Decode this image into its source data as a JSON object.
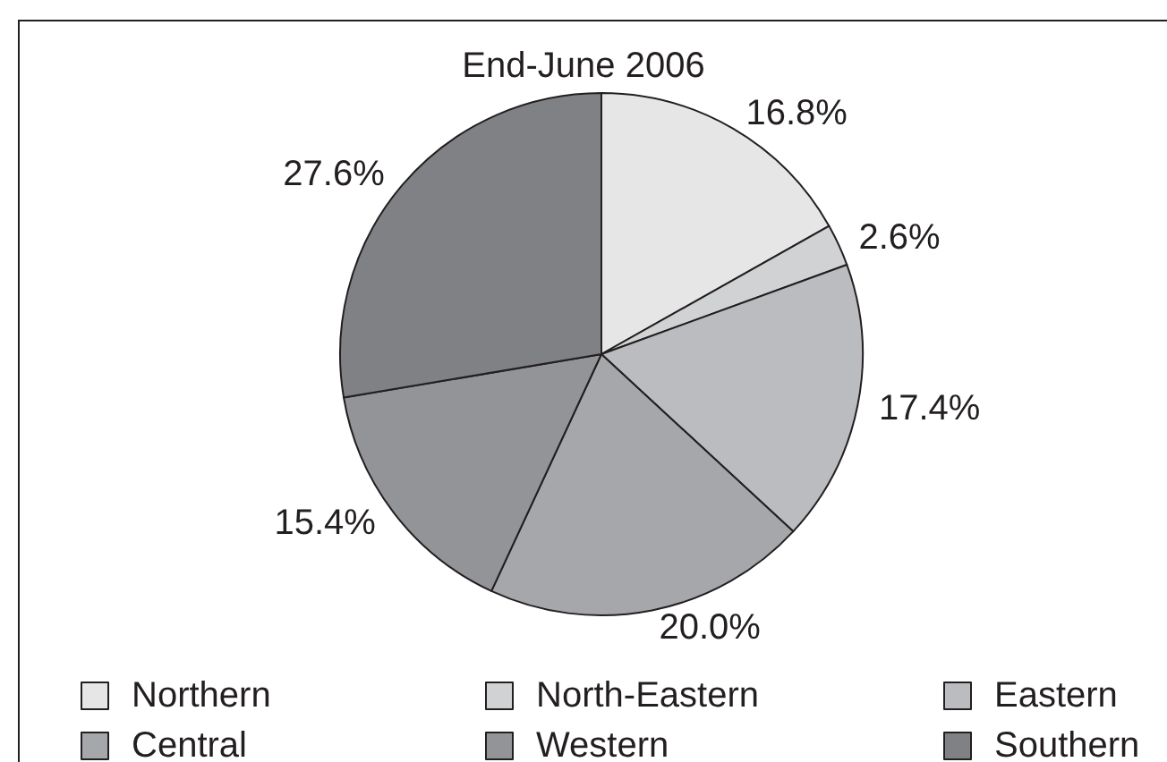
{
  "chart_data": {
    "type": "pie",
    "title": "End-June 2006",
    "categories": [
      "Northern",
      "North-Eastern",
      "Eastern",
      "Central",
      "Western",
      "Southern"
    ],
    "values": [
      16.8,
      2.6,
      17.4,
      20.0,
      15.4,
      27.6
    ],
    "colors": [
      "#e6e6e7",
      "#d1d2d4",
      "#bbbcbf",
      "#a6a7aa",
      "#939497",
      "#808184"
    ],
    "value_labels": [
      "16.8%",
      "2.6%",
      "17.4%",
      "20.0%",
      "15.4%",
      "27.6%"
    ],
    "legend": "bottom"
  }
}
